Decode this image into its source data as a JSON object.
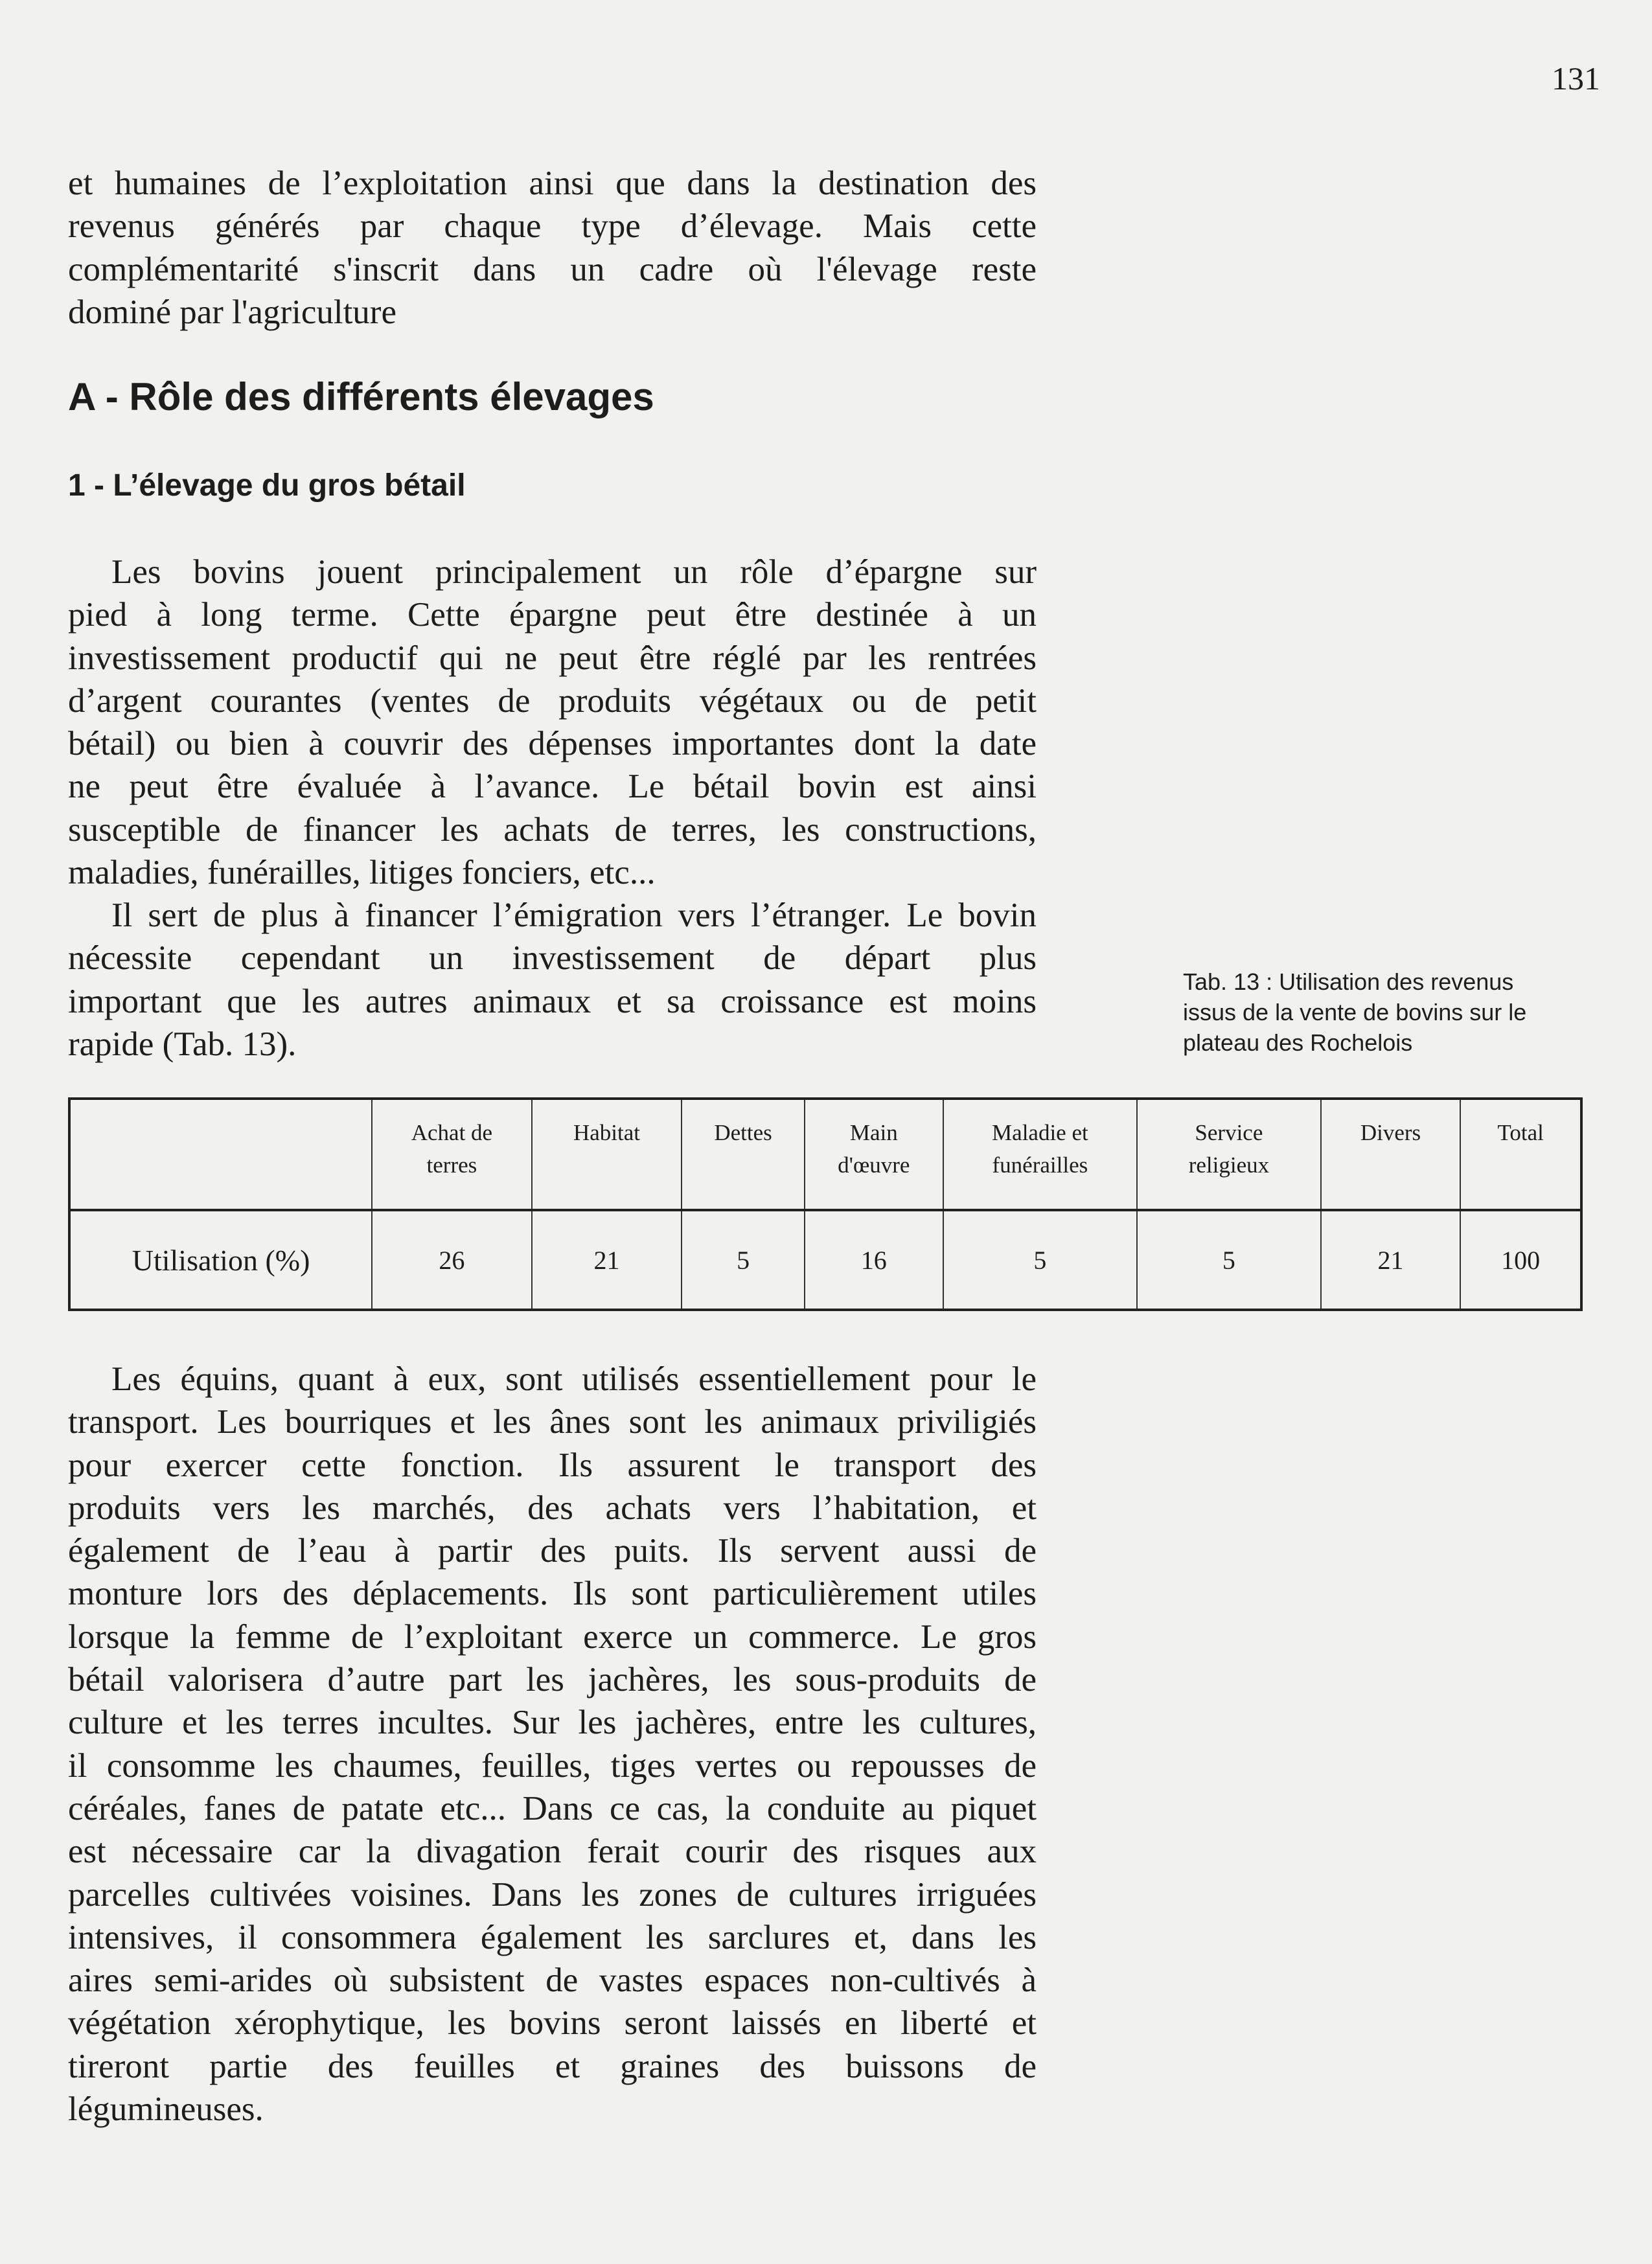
{
  "page_number": "131",
  "paragraph1": [
    "et humaines de l’exploitation ainsi que dans la destination des",
    "revenus générés par chaque type d’élevage. Mais cette",
    "complémentarité s'inscrit dans un cadre où l'élevage reste",
    "dominé par l'agriculture"
  ],
  "heading_section": "A - Rôle des différents élevages",
  "heading_subsection": "1 - L’élevage du gros bétail",
  "paragraph2": [
    "Les bovins jouent principalement un rôle d’épargne sur",
    "pied à long terme. Cette épargne peut être destinée à un",
    "investissement productif qui ne peut être réglé par les rentrées",
    "d’argent courantes (ventes de produits végétaux ou de petit",
    "bétail) ou bien à couvrir des dépenses importantes dont la date",
    "ne peut être évaluée à l’avance. Le bétail bovin est ainsi",
    "susceptible de financer les achats de terres, les constructions,",
    "maladies, funérailles, litiges fonciers, etc..."
  ],
  "paragraph3": [
    "Il sert de plus à financer l’émigration vers l’étranger. Le bovin",
    "nécessite cependant un investissement de départ plus",
    "important que les autres animaux et sa croissance est moins",
    "rapide (Tab. 13)."
  ],
  "caption": [
    "Tab. 13 : Utilisation des revenus",
    "issus de la vente de bovins sur le",
    "plateau des Rochelois"
  ],
  "table": {
    "headers": [
      [
        "",
        ""
      ],
      [
        "Achat de",
        "terres"
      ],
      [
        "Habitat",
        ""
      ],
      [
        "Dettes",
        ""
      ],
      [
        "Main",
        "d'œuvre"
      ],
      [
        "Maladie et",
        "funérailles"
      ],
      [
        "Service",
        "religieux"
      ],
      [
        "Divers",
        ""
      ],
      [
        "Total",
        ""
      ]
    ],
    "row": [
      "Utilisation (%)",
      "26",
      "21",
      "5",
      "16",
      "5",
      "5",
      "21",
      "100"
    ]
  },
  "paragraph4": [
    "Les équins, quant à eux, sont utilisés essentiellement pour le",
    "transport. Les bourriques et les ânes sont les animaux priviligiés",
    "pour  exercer cette fonction. Ils assurent le transport des",
    "produits vers les marchés, des achats vers l’habitation, et",
    "également de l’eau à partir des puits. Ils servent aussi de",
    "monture lors des déplacements. Ils sont particulièrement utiles",
    "lorsque la femme de l’exploitant exerce un commerce. Le gros",
    "bétail valorisera d’autre part les jachères, les sous-produits de",
    "culture et les terres incultes. Sur les jachères, entre les cultures,",
    "il consomme les chaumes, feuilles, tiges vertes ou repousses de",
    "céréales, fanes de patate etc... Dans ce cas, la conduite au piquet",
    "est nécessaire car la divagation ferait courir des risques aux",
    "parcelles cultivées voisines. Dans les zones de cultures irriguées",
    "intensives, il consommera également les sarclures et, dans les",
    "aires semi-arides où subsistent de vastes espaces non-cultivés à",
    "végétation xérophytique, les bovins seront laissés en liberté et",
    "tireront partie des feuilles et graines des buissons de",
    "légumineuses."
  ]
}
